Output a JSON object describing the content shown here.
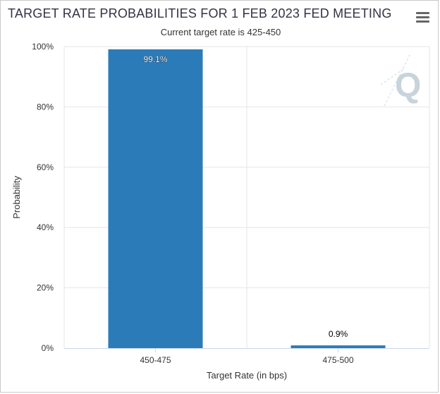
{
  "title": "TARGET RATE PROBABILITIES FOR 1 FEB 2023 FED MEETING",
  "subtitle": "Current target rate is 425-450",
  "menu": {
    "icon": "hamburger-menu-icon"
  },
  "watermark": {
    "icon": "q-logo-icon",
    "text": "Q"
  },
  "colors": {
    "bar": "#2b7bb9",
    "grid": "#e6e6e6",
    "axis": "#ccd6eb",
    "watermark": "#c8d4dc"
  },
  "chart_data": {
    "type": "bar",
    "title": "TARGET RATE PROBABILITIES FOR 1 FEB 2023 FED MEETING",
    "subtitle": "Current target rate is 425-450",
    "categories": [
      "450-475",
      "475-500"
    ],
    "values": [
      99.1,
      0.9
    ],
    "data_labels": [
      "99.1%",
      "0.9%"
    ],
    "xlabel": "Target Rate (in bps)",
    "ylabel": "Probability",
    "ylim": [
      0,
      100
    ],
    "yticks": [
      0,
      20,
      40,
      60,
      80,
      100
    ],
    "ytick_labels": [
      "0%",
      "20%",
      "40%",
      "60%",
      "80%",
      "100%"
    ],
    "grid": true,
    "legend": "none"
  }
}
